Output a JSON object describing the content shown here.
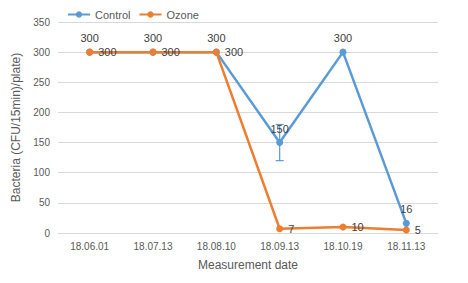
{
  "chart_data": {
    "type": "line",
    "x_label": "Measurement date",
    "y_label": "Bacteria (CFU/15min)/plate)",
    "categories": [
      "18.06.01",
      "18.07.13",
      "18.08.10",
      "18.09.13",
      "18.10.19",
      "18.11.13"
    ],
    "series": [
      {
        "name": "Control",
        "color": "#5b9bd5",
        "marker": "circle",
        "data_labels": true,
        "values": [
          300,
          300,
          300,
          150,
          300,
          16
        ],
        "errors": [
          null,
          null,
          null,
          30,
          null,
          null
        ]
      },
      {
        "name": "Ozone",
        "color": "#ed7d31",
        "marker": "circle",
        "data_labels": true,
        "values": [
          300,
          300,
          300,
          7,
          10,
          5
        ]
      }
    ],
    "ylim": [
      0,
      350
    ],
    "yticks": [
      0,
      50,
      100,
      150,
      200,
      250,
      300,
      350
    ],
    "grid": true,
    "legend": "top left"
  }
}
